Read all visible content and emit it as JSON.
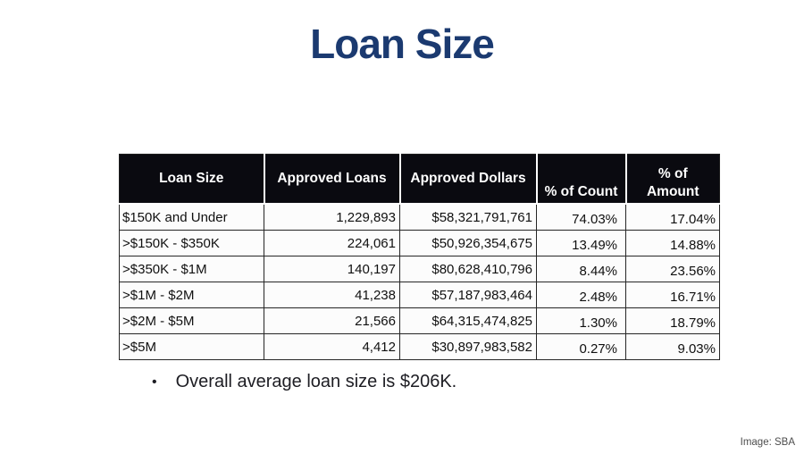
{
  "page": {
    "title": "Loan Size",
    "bullet_char": "•",
    "bullet_text": "Overall average loan size is $206K.",
    "credit": "Image: SBA"
  },
  "colors": {
    "title": "#1b3a70",
    "header_bg": "#0a0a10",
    "header_text": "#ffffff",
    "cell_bg": "#fcfcfc",
    "border": "#262626",
    "body_text": "#101010",
    "credit_text": "#4d4d4d"
  },
  "table": {
    "columns": [
      "Loan Size",
      "Approved Loans",
      "Approved Dollars",
      "% of Count",
      "% of\nAmount"
    ],
    "fields": [
      "loan-size",
      "approved-loans",
      "approved-dollars",
      "pct-count",
      "pct-amount"
    ],
    "rows": [
      [
        "$150K and Under",
        "1,229,893",
        "$58,321,791,761",
        "74.03%",
        "17.04%"
      ],
      [
        ">$150K - $350K",
        "224,061",
        "$50,926,354,675",
        "13.49%",
        "14.88%"
      ],
      [
        ">$350K - $1M",
        "140,197",
        "$80,628,410,796",
        "8.44%",
        "23.56%"
      ],
      [
        ">$1M - $2M",
        "41,238",
        "$57,187,983,464",
        "2.48%",
        "16.71%"
      ],
      [
        ">$2M - $5M",
        "21,566",
        "$64,315,474,825",
        "1.30%",
        "18.79%"
      ],
      [
        ">$5M",
        "4,412",
        "$30,897,983,582",
        "0.27%",
        "9.03%"
      ]
    ]
  },
  "chart_data": {
    "type": "table",
    "title": "Loan Size",
    "columns": [
      "Loan Size",
      "Approved Loans",
      "Approved Dollars",
      "% of Count",
      "% of Amount"
    ],
    "rows": [
      [
        "$150K and Under",
        1229893,
        58321791761,
        74.03,
        17.04
      ],
      [
        ">$150K - $350K",
        224061,
        50926354675,
        13.49,
        14.88
      ],
      [
        ">$350K - $1M",
        140197,
        80628410796,
        8.44,
        23.56
      ],
      [
        ">$1M - $2M",
        41238,
        57187983464,
        2.48,
        16.71
      ],
      [
        ">$2M - $5M",
        21566,
        64315474825,
        1.3,
        18.79
      ],
      [
        ">$5M",
        4412,
        30897983582,
        0.27,
        9.03
      ]
    ],
    "annotations": [
      "Overall average loan size is $206K."
    ]
  }
}
